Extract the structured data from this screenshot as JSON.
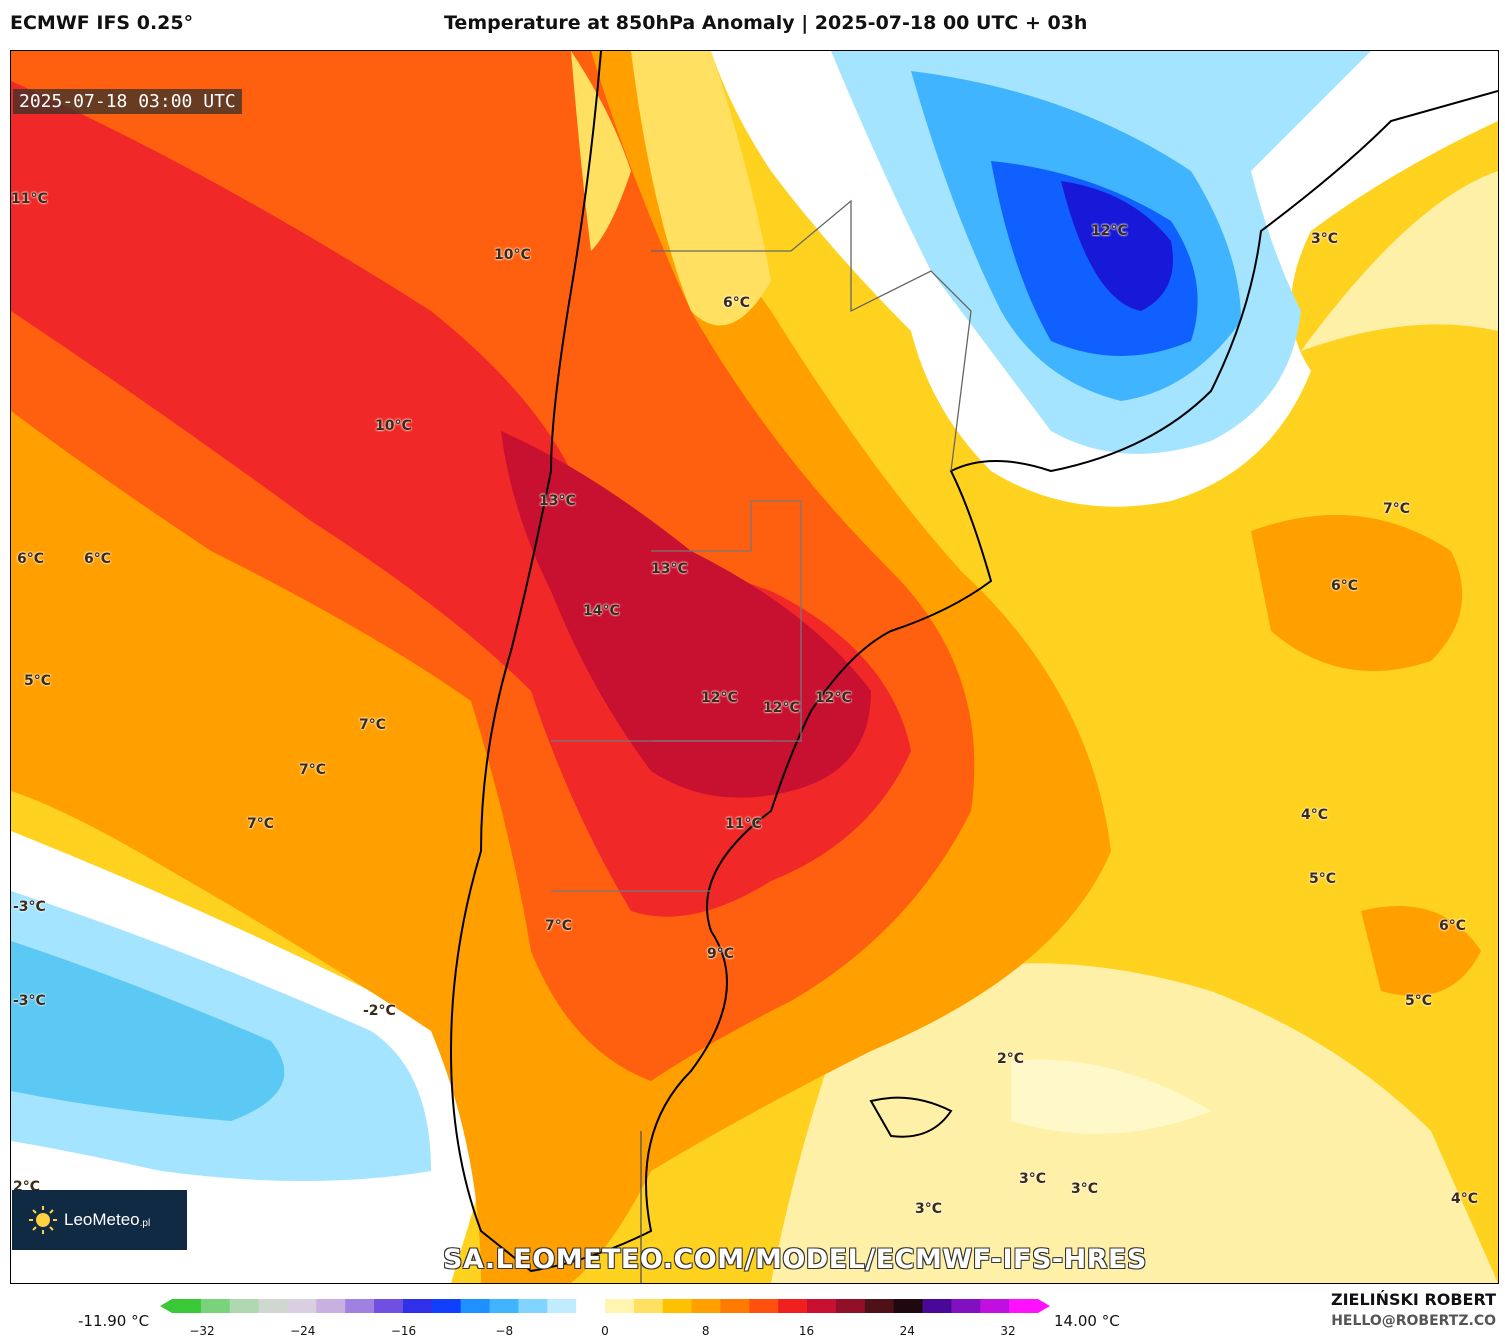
{
  "header": {
    "model": "ECMWF IFS 0.25°",
    "title": "Temperature at 850hPa Anomaly | 2025-07-18 00 UTC + 03h"
  },
  "map": {
    "valid_time": "2025-07-18 03:00 UTC",
    "labels": [
      {
        "text": "11°C"
      },
      {
        "text": "10°C"
      },
      {
        "text": "10°C"
      },
      {
        "text": "6°C"
      },
      {
        "text": "12°C"
      },
      {
        "text": "3°C"
      },
      {
        "text": "13°C"
      },
      {
        "text": "13°C"
      },
      {
        "text": "14°C"
      },
      {
        "text": "6°C"
      },
      {
        "text": "6°C"
      },
      {
        "text": "7°C"
      },
      {
        "text": "6°C"
      },
      {
        "text": "5°C"
      },
      {
        "text": "7°C"
      },
      {
        "text": "12°C"
      },
      {
        "text": "12°C"
      },
      {
        "text": "12°C"
      },
      {
        "text": "7°C"
      },
      {
        "text": "7°C"
      },
      {
        "text": "11°C"
      },
      {
        "text": "4°C"
      },
      {
        "text": "5°C"
      },
      {
        "text": "-3°C"
      },
      {
        "text": "7°C"
      },
      {
        "text": "9°C"
      },
      {
        "text": "6°C"
      },
      {
        "text": "-3°C"
      },
      {
        "text": "-2°C"
      },
      {
        "text": "5°C"
      },
      {
        "text": "2°C"
      },
      {
        "text": "3°C"
      },
      {
        "text": "3°C"
      },
      {
        "text": "3°C"
      },
      {
        "text": "4°C"
      },
      {
        "text": "2°C"
      }
    ],
    "logo_text": "LeoMeteo",
    "logo_sub": ".pl",
    "url": "SA.LEOMETEO.COM/MODEL/ECMWF-IFS-HRES"
  },
  "colorbar": {
    "min_label": "-11.90 °C",
    "max_label": "14.00 °C",
    "ticks": [
      "−32",
      "−24",
      "−16",
      "−8",
      "0",
      "8",
      "16",
      "24",
      "32"
    ],
    "colors": [
      "#38c838",
      "#7ad37a",
      "#b0d8b0",
      "#cfd8d0",
      "#d8d0e0",
      "#c8b0e0",
      "#a080e0",
      "#7050e0",
      "#3030e8",
      "#1040ff",
      "#1e90ff",
      "#40b4ff",
      "#80d4ff",
      "#c0ecff",
      "#ffffff",
      "#fff4b0",
      "#ffe060",
      "#ffc000",
      "#ffa000",
      "#ff7a00",
      "#ff5010",
      "#f02020",
      "#c81030",
      "#901028",
      "#501018",
      "#200810",
      "#4a0898",
      "#8010c0",
      "#c010e0",
      "#ff10ff"
    ]
  },
  "credits": {
    "author": "ZIELIŃSKI ROBERT",
    "email": "HELLO@ROBERTZ.CO"
  }
}
